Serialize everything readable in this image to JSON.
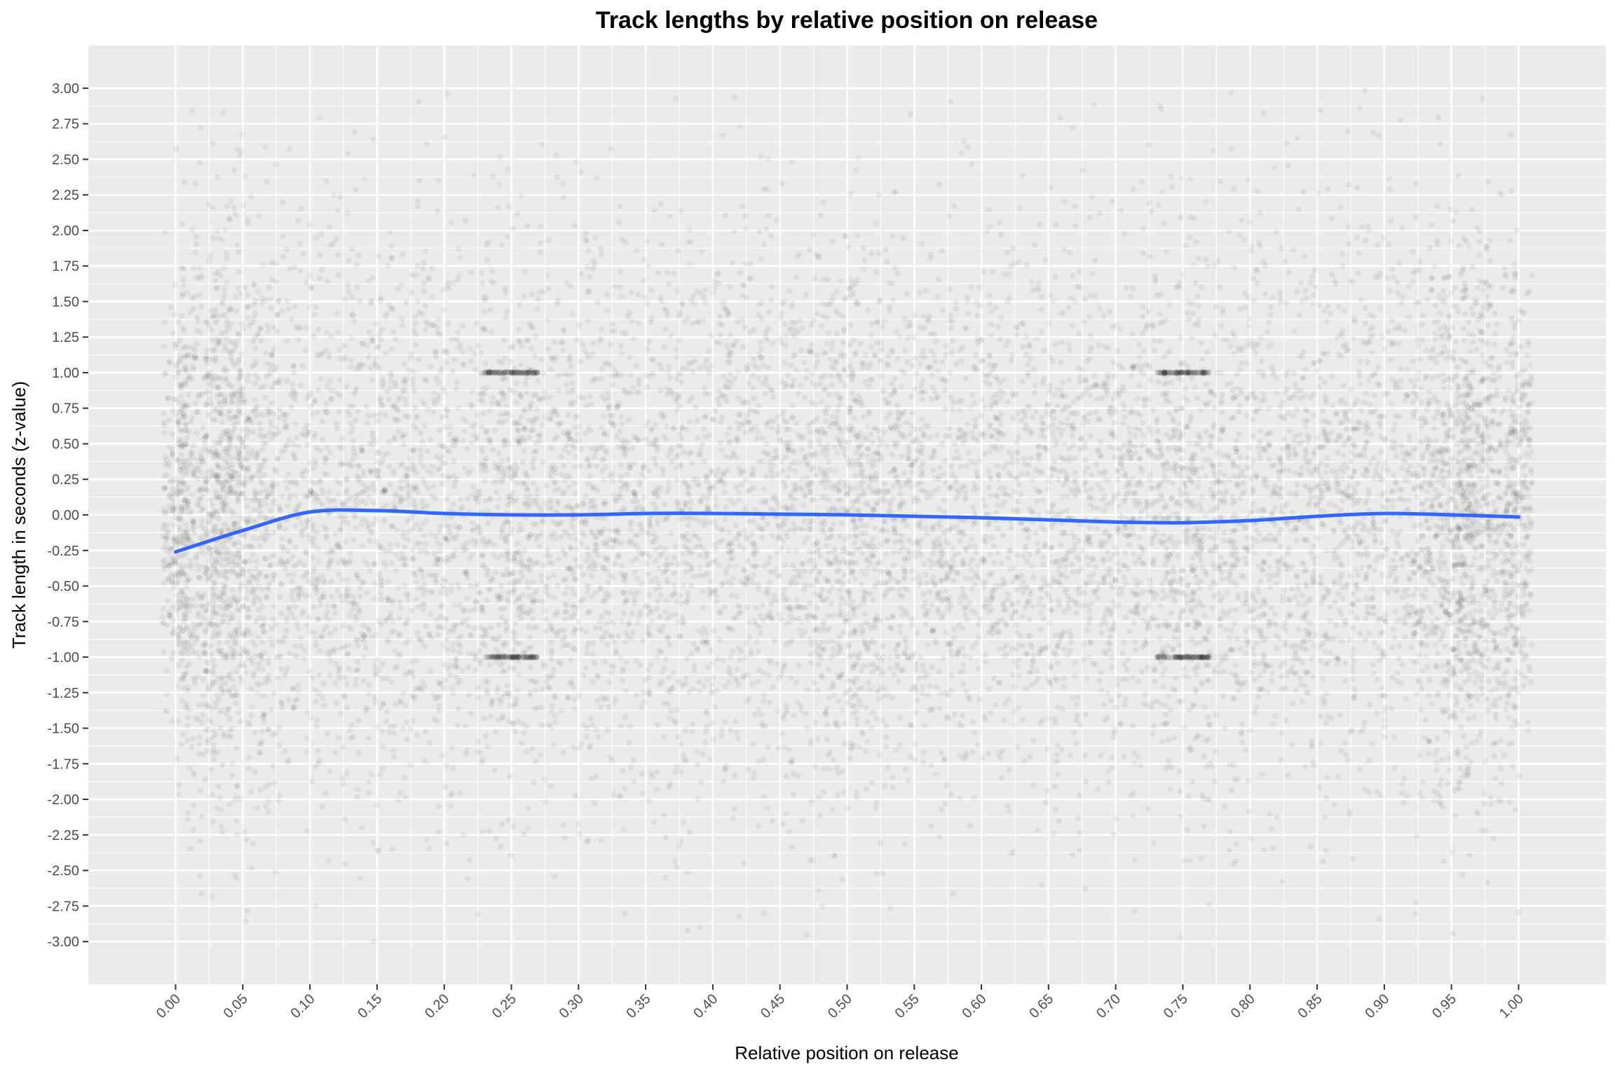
{
  "chart_data": {
    "type": "scatter",
    "title": "Track lengths by relative position on release",
    "xlabel": "Relative position on release",
    "ylabel": "Track length in seconds (z-value)",
    "xlim": [
      -0.065,
      1.065
    ],
    "ylim": [
      -3.3,
      3.3
    ],
    "x_ticks": [
      "0.00",
      "0.05",
      "0.10",
      "0.15",
      "0.20",
      "0.25",
      "0.30",
      "0.35",
      "0.40",
      "0.45",
      "0.50",
      "0.55",
      "0.60",
      "0.65",
      "0.70",
      "0.75",
      "0.80",
      "0.85",
      "0.90",
      "0.95",
      "1.00"
    ],
    "y_ticks": [
      "3.00",
      "2.75",
      "2.50",
      "2.25",
      "2.00",
      "1.75",
      "1.50",
      "1.25",
      "1.00",
      "0.75",
      "0.50",
      "0.25",
      "0.00",
      "-0.25",
      "-0.50",
      "-0.75",
      "-1.00",
      "-1.25",
      "-1.50",
      "-1.75",
      "-2.00",
      "-2.25",
      "-2.50",
      "-2.75",
      "-3.00"
    ],
    "grid": true,
    "minor_grid": true,
    "background": "#ebebeb",
    "grid_color": "#ffffff",
    "point_color": "#000000",
    "point_alpha": 0.06,
    "smooth_color": "#3366ff",
    "smooth": {
      "x": [
        0.0,
        0.05,
        0.1,
        0.15,
        0.2,
        0.25,
        0.3,
        0.35,
        0.4,
        0.45,
        0.5,
        0.55,
        0.6,
        0.65,
        0.7,
        0.75,
        0.8,
        0.85,
        0.9,
        0.95,
        1.0
      ],
      "y": [
        -0.26,
        -0.11,
        0.02,
        0.03,
        0.01,
        0.0,
        0.0,
        0.01,
        0.01,
        0.005,
        0.0,
        -0.01,
        -0.02,
        -0.035,
        -0.05,
        -0.055,
        -0.04,
        -0.01,
        0.01,
        0.0,
        -0.015
      ]
    },
    "point_clusters": [
      {
        "x_range": [
          0.23,
          0.27
        ],
        "y": 1.0
      },
      {
        "x_range": [
          0.23,
          0.27
        ],
        "y": -1.0
      },
      {
        "x_range": [
          0.73,
          0.77
        ],
        "y": 1.0
      },
      {
        "x_range": [
          0.73,
          0.77
        ],
        "y": -1.0
      }
    ]
  }
}
